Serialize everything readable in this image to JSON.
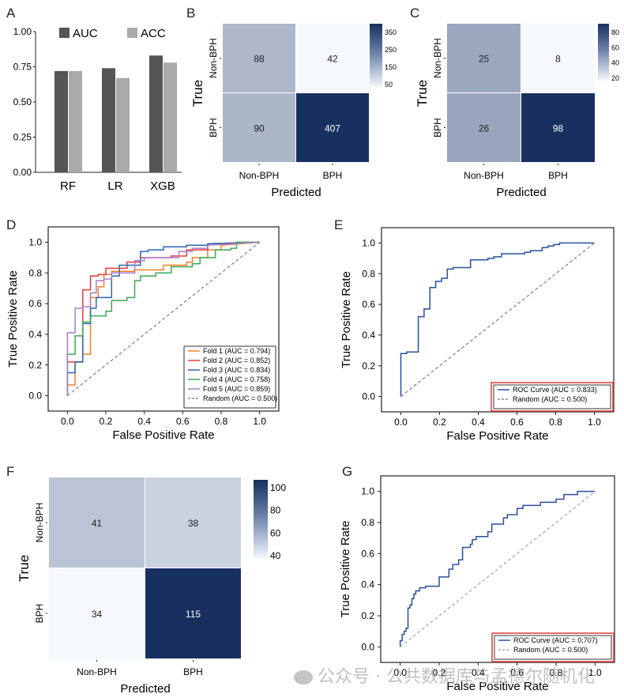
{
  "watermark": {
    "text": "公众号 · 公共数据库与孟德尔随机化"
  },
  "chart_data": [
    {
      "panel": "A",
      "type": "bar",
      "title": "",
      "categories": [
        "RF",
        "LR",
        "XGB"
      ],
      "series": [
        {
          "name": "AUC",
          "color": "#555555",
          "values": [
            0.72,
            0.74,
            0.83
          ]
        },
        {
          "name": "ACC",
          "color": "#aaaaaa",
          "values": [
            0.72,
            0.67,
            0.78
          ]
        }
      ],
      "xlabel": "",
      "ylabel": "",
      "ylim": [
        0,
        1.0
      ],
      "yticks": [
        "0.00",
        "0.25",
        "0.50",
        "0.75",
        "1.00"
      ],
      "legend": "top",
      "grid": false
    },
    {
      "panel": "B",
      "type": "heatmap",
      "rows": [
        "Non-BPH",
        "BPH"
      ],
      "cols": [
        "Non-BPH",
        "BPH"
      ],
      "values": [
        [
          88,
          42
        ],
        [
          90,
          407
        ]
      ],
      "xlabel": "Predicted",
      "ylabel": "True",
      "colorbar": {
        "ticks": [
          "350",
          "250",
          "150",
          "50"
        ],
        "range": [
          42,
          407
        ]
      }
    },
    {
      "panel": "C",
      "type": "heatmap",
      "rows": [
        "Non-BPH",
        "BPH"
      ],
      "cols": [
        "Non-BPH",
        "BPH"
      ],
      "values": [
        [
          25,
          8
        ],
        [
          26,
          98
        ]
      ],
      "xlabel": "Predicted",
      "ylabel": "True",
      "colorbar": {
        "ticks": [
          "80",
          "60",
          "40",
          "20"
        ],
        "range": [
          8,
          98
        ]
      }
    },
    {
      "panel": "D",
      "type": "line",
      "xlabel": "False Positive Rate",
      "ylabel": "True Positive Rate",
      "xlim": [
        -0.1,
        1.1
      ],
      "ylim": [
        -0.1,
        1.1
      ],
      "xticks": [
        "0.0",
        "0.2",
        "0.4",
        "0.6",
        "0.8",
        "1.0"
      ],
      "yticks": [
        "0.0",
        "0.2",
        "0.4",
        "0.6",
        "0.8",
        "1.0"
      ],
      "legend": "bottom-right",
      "series": [
        {
          "name": "Fold 1 (AUC = 0.794)",
          "color": "#f5821f",
          "x": [
            0,
            0,
            0.04,
            0.04,
            0.08,
            0.08,
            0.12,
            0.12,
            0.16,
            0.16,
            0.19,
            0.19,
            0.23,
            0.23,
            0.35,
            0.35,
            0.5,
            0.5,
            0.62,
            0.62,
            0.65,
            0.65,
            0.73,
            0.73,
            0.8,
            0.8,
            1.0
          ],
          "y": [
            0,
            0.07,
            0.07,
            0.22,
            0.22,
            0.27,
            0.27,
            0.64,
            0.64,
            0.71,
            0.71,
            0.79,
            0.79,
            0.81,
            0.81,
            0.82,
            0.82,
            0.85,
            0.85,
            0.87,
            0.87,
            0.9,
            0.9,
            0.95,
            0.95,
            0.98,
            1.0
          ]
        },
        {
          "name": "Fold 2 (AUC = 0.852)",
          "color": "#e8383d",
          "x": [
            0,
            0,
            0.08,
            0.08,
            0.12,
            0.12,
            0.16,
            0.16,
            0.2,
            0.2,
            0.31,
            0.31,
            0.38,
            0.38,
            0.54,
            0.54,
            0.62,
            0.62,
            0.73,
            0.73,
            1.0
          ],
          "y": [
            0,
            0.22,
            0.22,
            0.69,
            0.69,
            0.78,
            0.78,
            0.79,
            0.79,
            0.83,
            0.83,
            0.87,
            0.87,
            0.9,
            0.9,
            0.91,
            0.91,
            0.95,
            0.95,
            0.99,
            1.0
          ]
        },
        {
          "name": "Fold 3 (AUC = 0.834)",
          "color": "#2a66b5",
          "x": [
            0,
            0,
            0.04,
            0.04,
            0.08,
            0.08,
            0.12,
            0.12,
            0.15,
            0.15,
            0.23,
            0.23,
            0.27,
            0.27,
            0.38,
            0.38,
            0.42,
            0.42,
            0.5,
            0.5,
            0.62,
            0.62,
            0.73,
            0.73,
            1.0
          ],
          "y": [
            0,
            0.15,
            0.15,
            0.22,
            0.22,
            0.47,
            0.47,
            0.57,
            0.57,
            0.64,
            0.64,
            0.78,
            0.78,
            0.85,
            0.85,
            0.94,
            0.94,
            0.95,
            0.95,
            0.97,
            0.97,
            0.98,
            0.98,
            0.99,
            1.0
          ]
        },
        {
          "name": "Fold 4 (AUC = 0.758)",
          "color": "#3aa856",
          "x": [
            0,
            0,
            0.04,
            0.04,
            0.08,
            0.08,
            0.12,
            0.12,
            0.2,
            0.2,
            0.23,
            0.23,
            0.31,
            0.31,
            0.35,
            0.35,
            0.38,
            0.38,
            0.46,
            0.46,
            0.54,
            0.54,
            0.65,
            0.65,
            0.69,
            0.69,
            0.77,
            0.77,
            0.85,
            0.85,
            0.88,
            0.88,
            1.0
          ],
          "y": [
            0,
            0.27,
            0.27,
            0.39,
            0.39,
            0.48,
            0.48,
            0.52,
            0.52,
            0.55,
            0.55,
            0.62,
            0.62,
            0.64,
            0.64,
            0.75,
            0.75,
            0.78,
            0.78,
            0.8,
            0.8,
            0.84,
            0.84,
            0.86,
            0.86,
            0.9,
            0.9,
            0.95,
            0.95,
            0.96,
            0.96,
            1.0,
            1.0
          ]
        },
        {
          "name": "Fold 5 (AUC = 0.859)",
          "color": "#a87cc8",
          "x": [
            0,
            0,
            0.04,
            0.04,
            0.08,
            0.08,
            0.12,
            0.12,
            0.15,
            0.15,
            0.19,
            0.19,
            0.23,
            0.23,
            0.35,
            0.35,
            0.4,
            0.4,
            0.58,
            0.58,
            0.65,
            0.65,
            0.73,
            0.73,
            1.0
          ],
          "y": [
            0,
            0.41,
            0.41,
            0.57,
            0.57,
            0.58,
            0.58,
            0.67,
            0.67,
            0.75,
            0.75,
            0.76,
            0.76,
            0.8,
            0.8,
            0.88,
            0.88,
            0.9,
            0.9,
            0.94,
            0.94,
            0.96,
            0.96,
            0.98,
            1.0
          ]
        },
        {
          "name": "Random (AUC = 0.500)",
          "color": "#888888",
          "dashed": true,
          "x": [
            0,
            1
          ],
          "y": [
            0,
            1
          ]
        }
      ]
    },
    {
      "panel": "E",
      "type": "line",
      "xlabel": "False Positive Rate",
      "ylabel": "True Positive Rate",
      "xlim": [
        -0.1,
        1.1
      ],
      "ylim": [
        -0.1,
        1.1
      ],
      "xticks": [
        "0.0",
        "0.2",
        "0.4",
        "0.6",
        "0.8",
        "1.0"
      ],
      "yticks": [
        "0.0",
        "0.2",
        "0.4",
        "0.6",
        "0.8",
        "1.0"
      ],
      "legend": "bottom-right",
      "legend_highlight": "#e03a3a",
      "series": [
        {
          "name": "ROC Curve (AUC =  0.833)",
          "color": "#2a4f9e",
          "x": [
            0,
            0,
            0.03,
            0.03,
            0.09,
            0.09,
            0.12,
            0.12,
            0.15,
            0.15,
            0.18,
            0.18,
            0.21,
            0.21,
            0.24,
            0.24,
            0.27,
            0.27,
            0.36,
            0.36,
            0.45,
            0.45,
            0.48,
            0.48,
            0.52,
            0.52,
            0.64,
            0.64,
            0.67,
            0.67,
            0.73,
            0.73,
            0.76,
            0.76,
            0.79,
            0.79,
            0.82,
            0.82,
            1.0
          ],
          "y": [
            0,
            0.28,
            0.28,
            0.29,
            0.29,
            0.52,
            0.52,
            0.57,
            0.57,
            0.71,
            0.71,
            0.75,
            0.75,
            0.77,
            0.77,
            0.83,
            0.83,
            0.84,
            0.84,
            0.89,
            0.89,
            0.9,
            0.9,
            0.91,
            0.91,
            0.93,
            0.93,
            0.94,
            0.94,
            0.95,
            0.95,
            0.97,
            0.97,
            0.98,
            0.98,
            0.99,
            0.99,
            1.0,
            1.0
          ]
        },
        {
          "name": "Random (AUC = 0.500)",
          "color": "#888888",
          "dashed": true,
          "x": [
            0,
            1
          ],
          "y": [
            0,
            1
          ]
        }
      ]
    },
    {
      "panel": "F",
      "type": "heatmap",
      "rows": [
        "Non-BPH",
        "BPH"
      ],
      "cols": [
        "Non-BPH",
        "BPH"
      ],
      "values": [
        [
          41,
          38
        ],
        [
          34,
          115
        ]
      ],
      "xlabel": "Predicted",
      "ylabel": "True",
      "colorbar": {
        "ticks": [
          "100",
          "80",
          "60",
          "40"
        ],
        "range": [
          34,
          115
        ]
      }
    },
    {
      "panel": "G",
      "type": "line",
      "xlabel": "False Positive Rate",
      "ylabel": "True Positive Rate",
      "xlim": [
        -0.1,
        1.1
      ],
      "ylim": [
        -0.1,
        1.1
      ],
      "xticks": [
        "0.0",
        "0.2",
        "0.4",
        "0.6",
        "0.8",
        "1.0"
      ],
      "yticks": [
        "0.0",
        "0.2",
        "0.4",
        "0.6",
        "0.8",
        "1.0"
      ],
      "legend": "bottom-right",
      "legend_highlight": "#e03a3a",
      "series": [
        {
          "name": "ROC Curve (AUC =  0.707)",
          "color": "#2a4f9e",
          "x": [
            0,
            0,
            0.01,
            0.01,
            0.02,
            0.02,
            0.03,
            0.03,
            0.04,
            0.04,
            0.05,
            0.05,
            0.06,
            0.06,
            0.07,
            0.07,
            0.08,
            0.08,
            0.1,
            0.1,
            0.13,
            0.13,
            0.2,
            0.2,
            0.25,
            0.25,
            0.27,
            0.27,
            0.3,
            0.3,
            0.32,
            0.32,
            0.36,
            0.36,
            0.37,
            0.37,
            0.39,
            0.39,
            0.45,
            0.45,
            0.47,
            0.47,
            0.53,
            0.53,
            0.55,
            0.55,
            0.6,
            0.6,
            0.63,
            0.63,
            0.72,
            0.72,
            0.8,
            0.8,
            0.84,
            0.84,
            0.91,
            0.91,
            1.0
          ],
          "y": [
            0,
            0.04,
            0.04,
            0.08,
            0.08,
            0.1,
            0.1,
            0.12,
            0.12,
            0.25,
            0.25,
            0.27,
            0.27,
            0.31,
            0.31,
            0.34,
            0.34,
            0.36,
            0.36,
            0.38,
            0.38,
            0.39,
            0.39,
            0.45,
            0.45,
            0.5,
            0.5,
            0.53,
            0.53,
            0.56,
            0.56,
            0.64,
            0.64,
            0.66,
            0.66,
            0.69,
            0.69,
            0.71,
            0.71,
            0.74,
            0.74,
            0.79,
            0.79,
            0.83,
            0.83,
            0.85,
            0.85,
            0.89,
            0.89,
            0.91,
            0.91,
            0.93,
            0.93,
            0.95,
            0.95,
            0.98,
            0.98,
            1.0,
            1.0
          ]
        },
        {
          "name": "Random (AUC = 0.500)",
          "color": "#aaaaaa",
          "dashed": true,
          "x": [
            0,
            1
          ],
          "y": [
            0,
            1
          ]
        }
      ]
    }
  ]
}
